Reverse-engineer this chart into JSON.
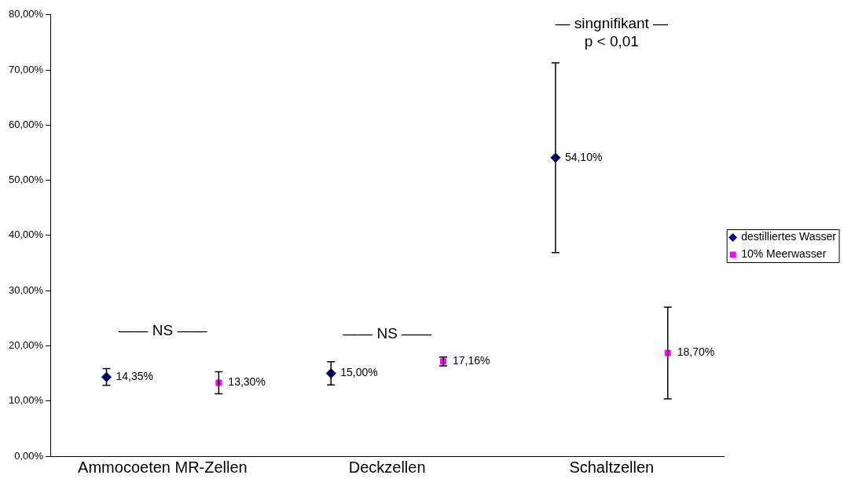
{
  "chart_data": {
    "type": "scatter",
    "categories": [
      "Ammocoeten MR-Zellen",
      "Deckzellen",
      "Schaltzellen"
    ],
    "series": [
      {
        "name": "destilliertes Wasser",
        "color": "#000080",
        "marker": "diamond",
        "values": [
          14.35,
          15.0,
          54.1
        ],
        "errors": [
          1.5,
          2.1,
          17.2
        ],
        "value_labels": [
          "14,35%",
          "15,00%",
          "54,10%"
        ]
      },
      {
        "name": "10% Meerwasser",
        "color": "#ff00ff",
        "marker": "square",
        "values": [
          13.3,
          17.16,
          18.7
        ],
        "errors": [
          2.0,
          0.8,
          8.3
        ],
        "value_labels": [
          "13,30%",
          "17,16%",
          "18,70%"
        ]
      }
    ],
    "ylim": [
      0,
      80
    ],
    "yticks": [
      {
        "value": 0,
        "label": "0,00%"
      },
      {
        "value": 10,
        "label": "10,00%"
      },
      {
        "value": 20,
        "label": "20,00%"
      },
      {
        "value": 30,
        "label": "30,00%"
      },
      {
        "value": 40,
        "label": "40,00%"
      },
      {
        "value": 50,
        "label": "50,00%"
      },
      {
        "value": 60,
        "label": "60,00%"
      },
      {
        "value": 70,
        "label": "70,00%"
      },
      {
        "value": 80,
        "label": "80,00%"
      }
    ],
    "grid": false,
    "legend": "right",
    "annotations": [
      "—— NS ——",
      "—— NS ——",
      "— singnifikant —",
      "p < 0,01"
    ]
  }
}
